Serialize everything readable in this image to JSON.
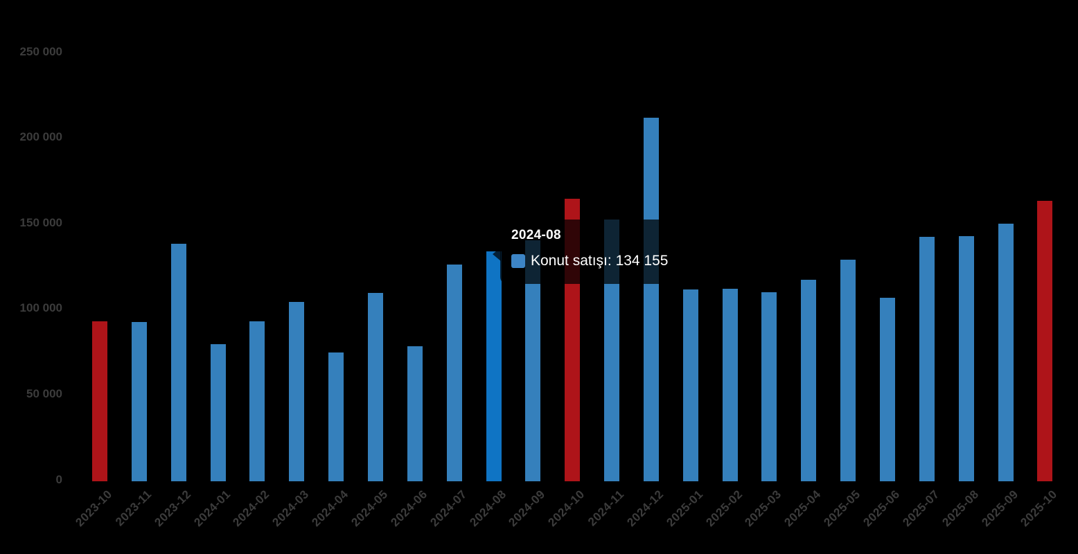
{
  "chart_data": {
    "type": "bar",
    "title": "",
    "xlabel": "",
    "ylabel": "",
    "categories": [
      "2023-10",
      "2023-11",
      "2023-12",
      "2024-01",
      "2024-02",
      "2024-03",
      "2024-04",
      "2024-05",
      "2024-06",
      "2024-07",
      "2024-08",
      "2024-09",
      "2024-10",
      "2024-11",
      "2024-12",
      "2025-01",
      "2025-02",
      "2025-03",
      "2025-04",
      "2025-05",
      "2025-06",
      "2025-07",
      "2025-08",
      "2025-09",
      "2025-10"
    ],
    "series": [
      {
        "name": "Konut satışı",
        "values": [
          93500,
          93100,
          138600,
          80100,
          93500,
          104900,
          75200,
          110200,
          78900,
          126800,
          134155,
          140600,
          165100,
          152900,
          212500,
          111900,
          112600,
          110300,
          117600,
          129600,
          107400,
          142700,
          143200,
          150500,
          163800
        ]
      }
    ],
    "ylim": [
      0,
      250000
    ],
    "ytick_values": [
      0,
      50000,
      100000,
      150000,
      200000,
      250000
    ],
    "ytick_labels": [
      "0",
      "50 000",
      "100 000",
      "150 000",
      "200 000",
      "250 000"
    ],
    "grid": false,
    "legend_position": "none",
    "highlight_indices": [
      0,
      12,
      24
    ],
    "hover_index": 10,
    "colors": {
      "bar_default": "#3580bc",
      "bar_highlight": "#ae1419",
      "bar_hover": "#0f74c4",
      "axis_label": "#3c3c3c",
      "background": "#000000"
    }
  },
  "tooltip": {
    "title": "2024-08",
    "series_label": "Konut satışı",
    "value": "134 155",
    "text": "Konut satışı: 134 155",
    "swatch_color": "#3d85c6",
    "text_color": "#ffffff"
  }
}
